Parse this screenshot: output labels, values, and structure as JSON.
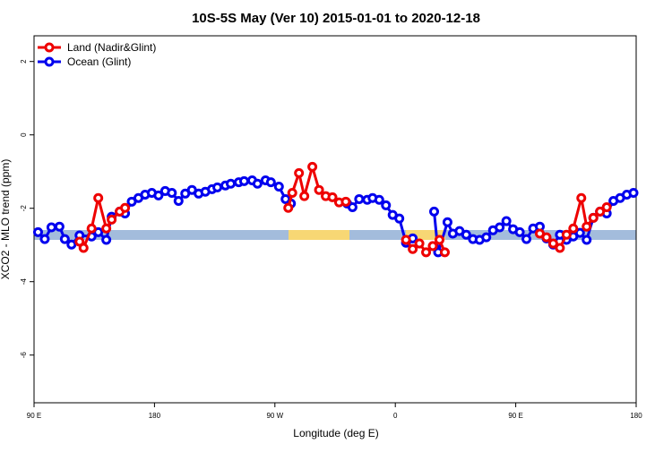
{
  "chart_data": {
    "type": "line",
    "title": "10S-5S May (Ver 10)   2015-01-01 to 2020-12-18",
    "x_label": "Longitude (deg E)",
    "y_label": "XCO2 - MLO trend (ppm)",
    "xlim": [
      90,
      540
    ],
    "xticks": [
      {
        "value": 90,
        "label": "90 E"
      },
      180,
      {
        "value": 270,
        "label": "90 W"
      },
      {
        "value": 360,
        "label": "0"
      },
      {
        "value": 450,
        "label": "90 E"
      },
      {
        "value": 540,
        "label": "180"
      }
    ],
    "ylim": [
      -7.3,
      2.7
    ],
    "yticks": [
      2,
      0,
      -2,
      -4,
      -6
    ],
    "legend": "top-left",
    "series": [
      {
        "name": "Land (Nadir&Glint)",
        "color": "#ee0000",
        "x": [
          124,
          127,
          133,
          138,
          144,
          148,
          154,
          158,
          null,
          280,
          283,
          288,
          292,
          298,
          303,
          308,
          313,
          318,
          323,
          null,
          368,
          373,
          378,
          383,
          388,
          393,
          397,
          null,
          468,
          473,
          478,
          483,
          488,
          493,
          499,
          503,
          508,
          513,
          518
        ],
        "values": [
          -2.91,
          -3.08,
          -2.55,
          -1.72,
          -2.55,
          -2.31,
          -2.09,
          -1.99,
          null,
          -1.99,
          -1.58,
          -1.04,
          -1.67,
          -0.87,
          -1.5,
          -1.67,
          -1.7,
          -1.84,
          -1.82,
          null,
          -2.86,
          -3.11,
          -2.96,
          -3.2,
          -3.03,
          -2.86,
          -3.2,
          null,
          -2.69,
          -2.79,
          -2.96,
          -3.08,
          -2.72,
          -2.55,
          -1.72,
          -2.5,
          -2.26,
          -2.09,
          -1.97
        ]
      },
      {
        "name": "Ocean (Glint)",
        "color": "#0000ee",
        "x": [
          93,
          98,
          103,
          109,
          113,
          118,
          124,
          133,
          138,
          144,
          148,
          154,
          158,
          163,
          168,
          173,
          178,
          183,
          188,
          193,
          198,
          203,
          208,
          213,
          218,
          223,
          227,
          233,
          237,
          243,
          247,
          253,
          257,
          263,
          267,
          273,
          278,
          282,
          null,
          324,
          328,
          333,
          339,
          343,
          348,
          353,
          358,
          363,
          368,
          373,
          null,
          389,
          392,
          399,
          403,
          408,
          413,
          418,
          423,
          428,
          433,
          438,
          443,
          448,
          453,
          458,
          463,
          468,
          473,
          478,
          483,
          488,
          493,
          498,
          503,
          508,
          513,
          518,
          523,
          528,
          533,
          538
        ],
        "values": [
          -2.65,
          -2.84,
          -2.52,
          -2.5,
          -2.84,
          -2.99,
          -2.74,
          -2.77,
          -2.65,
          -2.86,
          -2.23,
          -2.09,
          -2.14,
          -1.82,
          -1.72,
          -1.63,
          -1.58,
          -1.65,
          -1.53,
          -1.58,
          -1.8,
          -1.6,
          -1.5,
          -1.6,
          -1.55,
          -1.48,
          -1.43,
          -1.38,
          -1.33,
          -1.29,
          -1.26,
          -1.24,
          -1.33,
          -1.24,
          -1.29,
          -1.41,
          -1.75,
          -1.87,
          null,
          -1.87,
          -1.97,
          -1.75,
          -1.77,
          -1.72,
          -1.77,
          -1.92,
          -2.18,
          -2.28,
          -2.94,
          -2.82,
          null,
          -2.09,
          -3.2,
          -2.38,
          -2.69,
          -2.62,
          -2.72,
          -2.84,
          -2.86,
          -2.79,
          -2.6,
          -2.52,
          -2.35,
          -2.57,
          -2.65,
          -2.84,
          -2.55,
          -2.5,
          -2.82,
          -2.99,
          -2.72,
          -2.86,
          -2.77,
          -2.67,
          -2.86,
          -2.26,
          -2.09,
          -2.14,
          -1.8,
          -1.72,
          -1.63,
          -1.58
        ]
      }
    ]
  }
}
